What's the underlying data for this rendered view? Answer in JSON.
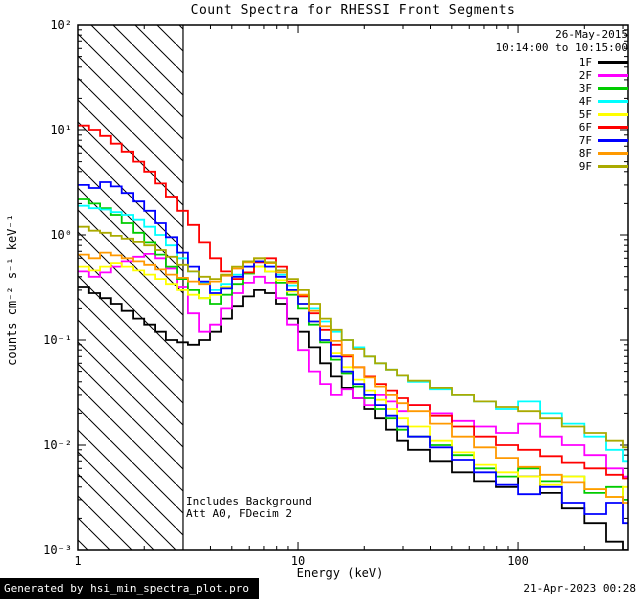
{
  "title": "Count Spectra for RHESSI Front Segments",
  "header": {
    "date": "26-May-2015",
    "time_range": "10:14:00 to 10:15:00"
  },
  "annotations": {
    "line1": "Includes Background",
    "line2": "Att A0, FDecim 2"
  },
  "footer": {
    "left": "Generated by hsi_min_spectra_plot.pro",
    "right": "21-Apr-2023 00:28"
  },
  "chart_data": {
    "type": "line",
    "mode": "histogram-step",
    "x_scale": "log",
    "y_scale": "log",
    "xlabel": "Energy (keV)",
    "ylabel": "counts cm⁻² s⁻¹ keV⁻¹",
    "xlim": [
      1,
      316
    ],
    "ylim": [
      0.001,
      100
    ],
    "x_ticks": [
      {
        "value": 1,
        "label": "1"
      },
      {
        "value": 10,
        "label": "10"
      },
      {
        "value": 100,
        "label": "100"
      }
    ],
    "y_ticks": [
      {
        "value": 100,
        "label": "10²"
      },
      {
        "value": 10,
        "label": "10¹"
      },
      {
        "value": 1,
        "label": "10⁰"
      },
      {
        "value": 0.1,
        "label": "10⁻¹"
      },
      {
        "value": 0.01,
        "label": "10⁻²"
      },
      {
        "value": 0.001,
        "label": "10⁻³"
      }
    ],
    "hatched_region": {
      "from": 1,
      "to": 3
    },
    "energies_keV": [
      1.0,
      1.12,
      1.26,
      1.41,
      1.58,
      1.78,
      2.0,
      2.24,
      2.51,
      2.82,
      3.16,
      3.55,
      3.98,
      4.47,
      5.01,
      5.62,
      6.31,
      7.08,
      7.94,
      8.91,
      10.0,
      11.2,
      12.6,
      14.1,
      15.8,
      17.8,
      20.0,
      22.4,
      25.1,
      28.2,
      31.6,
      39.8,
      50.1,
      63.1,
      79.4,
      100,
      126,
      158,
      200,
      251,
      300
    ],
    "series": [
      {
        "name": "1F",
        "color": "#000000",
        "values": [
          0.32,
          0.28,
          0.25,
          0.22,
          0.19,
          0.16,
          0.14,
          0.12,
          0.1,
          0.095,
          0.09,
          0.1,
          0.12,
          0.16,
          0.21,
          0.26,
          0.3,
          0.28,
          0.22,
          0.16,
          0.12,
          0.085,
          0.06,
          0.045,
          0.035,
          0.028,
          0.022,
          0.018,
          0.014,
          0.011,
          0.009,
          0.007,
          0.0055,
          0.0045,
          0.004,
          0.005,
          0.0035,
          0.0025,
          0.0018,
          0.0012,
          0.001
        ]
      },
      {
        "name": "2F",
        "color": "#ff00ff",
        "values": [
          0.45,
          0.4,
          0.44,
          0.5,
          0.56,
          0.62,
          0.66,
          0.6,
          0.48,
          0.32,
          0.18,
          0.12,
          0.14,
          0.2,
          0.28,
          0.35,
          0.4,
          0.35,
          0.25,
          0.14,
          0.08,
          0.05,
          0.038,
          0.03,
          0.034,
          0.028,
          0.024,
          0.03,
          0.026,
          0.021,
          0.024,
          0.02,
          0.017,
          0.015,
          0.013,
          0.016,
          0.012,
          0.01,
          0.008,
          0.006,
          0.005
        ]
      },
      {
        "name": "3F",
        "color": "#00cc00",
        "values": [
          2.2,
          2.0,
          1.8,
          1.55,
          1.3,
          1.05,
          0.85,
          0.65,
          0.5,
          0.38,
          0.3,
          0.25,
          0.22,
          0.27,
          0.34,
          0.43,
          0.5,
          0.45,
          0.35,
          0.27,
          0.2,
          0.14,
          0.095,
          0.065,
          0.048,
          0.036,
          0.028,
          0.022,
          0.018,
          0.014,
          0.012,
          0.01,
          0.008,
          0.006,
          0.005,
          0.006,
          0.0045,
          0.005,
          0.0035,
          0.004,
          0.003
        ]
      },
      {
        "name": "4F",
        "color": "#00ffff",
        "values": [
          1.9,
          1.8,
          1.75,
          1.65,
          1.55,
          1.4,
          1.2,
          1.0,
          0.8,
          0.6,
          0.45,
          0.35,
          0.3,
          0.34,
          0.42,
          0.5,
          0.56,
          0.5,
          0.42,
          0.33,
          0.26,
          0.2,
          0.15,
          0.12,
          0.1,
          0.085,
          0.07,
          0.06,
          0.052,
          0.046,
          0.04,
          0.034,
          0.03,
          0.026,
          0.022,
          0.026,
          0.02,
          0.016,
          0.012,
          0.009,
          0.007
        ]
      },
      {
        "name": "5F",
        "color": "#ffff00",
        "values": [
          0.5,
          0.46,
          0.5,
          0.54,
          0.5,
          0.46,
          0.42,
          0.38,
          0.34,
          0.3,
          0.27,
          0.25,
          0.27,
          0.32,
          0.38,
          0.44,
          0.5,
          0.45,
          0.37,
          0.29,
          0.22,
          0.15,
          0.1,
          0.075,
          0.055,
          0.042,
          0.033,
          0.027,
          0.022,
          0.018,
          0.015,
          0.011,
          0.0085,
          0.0065,
          0.0055,
          0.005,
          0.0042,
          0.005,
          0.0038,
          0.0032,
          0.004
        ]
      },
      {
        "name": "6F",
        "color": "#ff0000",
        "values": [
          11.0,
          10.0,
          8.8,
          7.4,
          6.2,
          5.0,
          4.0,
          3.1,
          2.3,
          1.7,
          1.25,
          0.85,
          0.6,
          0.45,
          0.38,
          0.44,
          0.55,
          0.6,
          0.5,
          0.36,
          0.26,
          0.18,
          0.125,
          0.09,
          0.07,
          0.055,
          0.045,
          0.038,
          0.033,
          0.028,
          0.024,
          0.019,
          0.015,
          0.012,
          0.01,
          0.009,
          0.0078,
          0.0068,
          0.006,
          0.0052,
          0.0048
        ]
      },
      {
        "name": "7F",
        "color": "#0000ff",
        "values": [
          3.0,
          2.8,
          3.2,
          2.9,
          2.5,
          2.1,
          1.7,
          1.3,
          0.95,
          0.68,
          0.5,
          0.36,
          0.28,
          0.31,
          0.4,
          0.5,
          0.56,
          0.5,
          0.4,
          0.3,
          0.22,
          0.15,
          0.1,
          0.07,
          0.05,
          0.038,
          0.03,
          0.024,
          0.019,
          0.015,
          0.012,
          0.0095,
          0.0072,
          0.0055,
          0.0042,
          0.0034,
          0.004,
          0.0028,
          0.0022,
          0.0028,
          0.0018
        ]
      },
      {
        "name": "8F",
        "color": "#ff9900",
        "values": [
          0.65,
          0.6,
          0.68,
          0.64,
          0.6,
          0.56,
          0.52,
          0.47,
          0.42,
          0.39,
          0.36,
          0.34,
          0.36,
          0.41,
          0.48,
          0.55,
          0.6,
          0.54,
          0.44,
          0.35,
          0.27,
          0.19,
          0.135,
          0.098,
          0.072,
          0.055,
          0.044,
          0.036,
          0.03,
          0.025,
          0.021,
          0.016,
          0.012,
          0.0095,
          0.0075,
          0.0062,
          0.0052,
          0.0044,
          0.0038,
          0.0032,
          0.0028
        ]
      },
      {
        "name": "9F",
        "color": "#aaaa00",
        "values": [
          1.2,
          1.1,
          1.05,
          0.98,
          0.92,
          0.86,
          0.8,
          0.72,
          0.62,
          0.52,
          0.45,
          0.4,
          0.38,
          0.42,
          0.5,
          0.56,
          0.6,
          0.55,
          0.46,
          0.38,
          0.3,
          0.22,
          0.16,
          0.125,
          0.1,
          0.082,
          0.07,
          0.06,
          0.052,
          0.046,
          0.041,
          0.035,
          0.03,
          0.026,
          0.023,
          0.021,
          0.018,
          0.015,
          0.013,
          0.011,
          0.0095
        ]
      }
    ]
  }
}
